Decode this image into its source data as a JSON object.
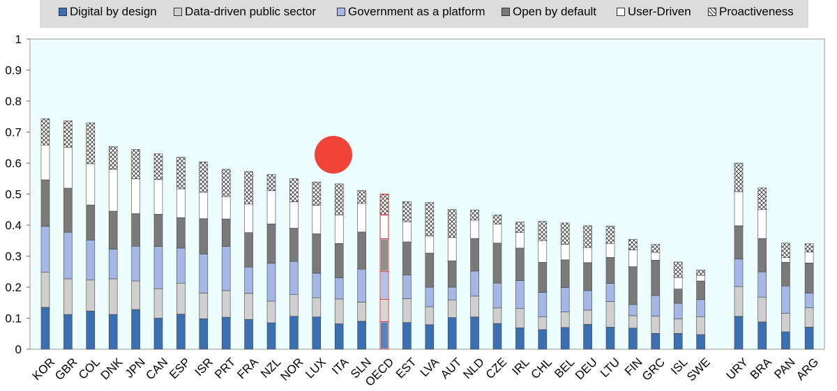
{
  "legend": [
    {
      "label": "Digital by design",
      "color": "#3b6fb3",
      "pattern": "solid"
    },
    {
      "label": "Data-driven public sector",
      "color": "#cfcfcf",
      "pattern": "solid"
    },
    {
      "label": "Government as a platform",
      "color": "#a4b7e6",
      "pattern": "solid"
    },
    {
      "label": "Open by default",
      "color": "#7a7a7a",
      "pattern": "solid"
    },
    {
      "label": "User-Driven",
      "color": "#ffffff",
      "pattern": "solid"
    },
    {
      "label": "Proactiveness",
      "color": "#ffffff",
      "pattern": "crosshatch"
    }
  ],
  "chart_data": {
    "type": "bar",
    "stacked": true,
    "ylim": [
      0,
      1
    ],
    "yticks": [
      "0",
      "0.1",
      "0.2",
      "0.3",
      "0.4",
      "0.5",
      "0.6",
      "0.7",
      "0.8",
      "0.9",
      "1"
    ],
    "categories": [
      "KOR",
      "GBR",
      "COL",
      "DNK",
      "JPN",
      "CAN",
      "ESP",
      "ISR",
      "PRT",
      "FRA",
      "NZL",
      "NOR",
      "LUX",
      "ITA",
      "SLN",
      "OECD",
      "EST",
      "LVA",
      "AUT",
      "NLD",
      "CZE",
      "IRL",
      "CHL",
      "BEL",
      "DEU",
      "LTU",
      "FIN",
      "GRC",
      "ISL",
      "SWE",
      "URY",
      "BRA",
      "PAN",
      "ARG"
    ],
    "highlight": "OECD",
    "series": [
      {
        "name": "Digital by design",
        "values": [
          0.135,
          0.112,
          0.123,
          0.112,
          0.128,
          0.1,
          0.113,
          0.098,
          0.103,
          0.096,
          0.085,
          0.106,
          0.104,
          0.082,
          0.09,
          0.089,
          0.086,
          0.079,
          0.102,
          0.104,
          0.083,
          0.069,
          0.063,
          0.07,
          0.08,
          0.071,
          0.068,
          0.051,
          0.051,
          0.047,
          0.106,
          0.088,
          0.056,
          0.071
        ]
      },
      {
        "name": "Data-driven public sector",
        "values": [
          0.113,
          0.115,
          0.1,
          0.115,
          0.092,
          0.095,
          0.1,
          0.083,
          0.086,
          0.084,
          0.07,
          0.07,
          0.062,
          0.08,
          0.062,
          0.072,
          0.077,
          0.058,
          0.057,
          0.067,
          0.05,
          0.062,
          0.041,
          0.05,
          0.046,
          0.083,
          0.04,
          0.056,
          0.047,
          0.058,
          0.096,
          0.08,
          0.06,
          0.063
        ]
      },
      {
        "name": "Government as a platform",
        "values": [
          0.148,
          0.15,
          0.129,
          0.095,
          0.112,
          0.136,
          0.113,
          0.126,
          0.142,
          0.085,
          0.122,
          0.107,
          0.079,
          0.068,
          0.106,
          0.089,
          0.076,
          0.063,
          0.041,
          0.081,
          0.08,
          0.09,
          0.079,
          0.079,
          0.063,
          0.058,
          0.036,
          0.066,
          0.05,
          0.055,
          0.089,
          0.081,
          0.088,
          0.047
        ]
      },
      {
        "name": "Open by default",
        "values": [
          0.15,
          0.142,
          0.113,
          0.123,
          0.105,
          0.104,
          0.098,
          0.114,
          0.089,
          0.111,
          0.127,
          0.107,
          0.127,
          0.111,
          0.12,
          0.106,
          0.107,
          0.11,
          0.085,
          0.105,
          0.129,
          0.105,
          0.097,
          0.089,
          0.09,
          0.084,
          0.122,
          0.114,
          0.046,
          0.06,
          0.107,
          0.108,
          0.076,
          0.097
        ]
      },
      {
        "name": "User-Driven",
        "values": [
          0.112,
          0.132,
          0.133,
          0.135,
          0.112,
          0.112,
          0.093,
          0.085,
          0.072,
          0.092,
          0.107,
          0.085,
          0.092,
          0.092,
          0.092,
          0.077,
          0.065,
          0.055,
          0.075,
          0.059,
          0.061,
          0.05,
          0.07,
          0.05,
          0.049,
          0.045,
          0.054,
          0.025,
          0.037,
          0.018,
          0.11,
          0.093,
          0.015,
          0.035
        ]
      },
      {
        "name": "Proactiveness",
        "values": [
          0.085,
          0.085,
          0.132,
          0.073,
          0.095,
          0.083,
          0.102,
          0.098,
          0.088,
          0.105,
          0.052,
          0.075,
          0.075,
          0.1,
          0.042,
          0.067,
          0.065,
          0.108,
          0.09,
          0.033,
          0.03,
          0.034,
          0.062,
          0.069,
          0.07,
          0.056,
          0.034,
          0.026,
          0.05,
          0.017,
          0.092,
          0.07,
          0.047,
          0.027
        ]
      }
    ]
  },
  "marker": {
    "label": "red dot annotation",
    "color": "#f04438"
  }
}
